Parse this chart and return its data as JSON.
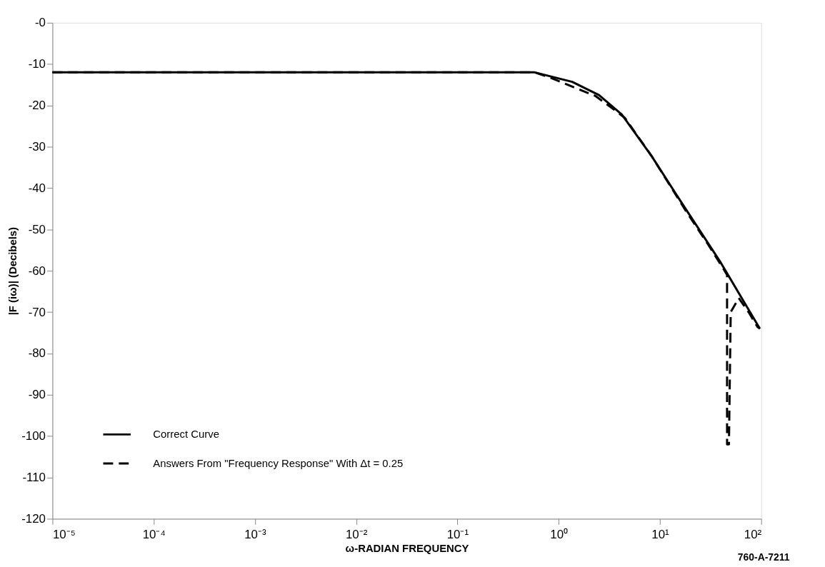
{
  "chart_data": {
    "type": "line",
    "xlabel": "ω-RADIAN FREQUENCY",
    "ylabel": "|F (iω)| (Decibels)",
    "log": "x",
    "xlim": [
      1e-05,
      100
    ],
    "ylim": [
      -120,
      0
    ],
    "xticks": [
      {
        "value": 1e-05,
        "label": "10⁻⁵"
      },
      {
        "value": 0.0001,
        "label": "10⁻⁴"
      },
      {
        "value": 0.001,
        "label": "10⁻³"
      },
      {
        "value": 0.01,
        "label": "10⁻²"
      },
      {
        "value": 0.1,
        "label": "10⁻¹"
      },
      {
        "value": 1,
        "label": "10⁰"
      },
      {
        "value": 10,
        "label": "10¹"
      },
      {
        "value": 100,
        "label": "10²"
      }
    ],
    "yticks": [
      {
        "value": 0,
        "label": "-0"
      },
      -10,
      -20,
      -30,
      -40,
      -50,
      -60,
      -70,
      -80,
      -90,
      -100,
      -110,
      -120
    ],
    "grid": false,
    "legend": "bottom left",
    "marker": "none",
    "series": [
      {
        "name": "Correct Curve",
        "color": "#000000",
        "line_style": "solid",
        "x": [
          1e-05,
          0.58,
          1.36,
          2.5,
          4.2,
          8.3,
          14.8,
          40,
          66,
          97
        ],
        "values": [
          -12,
          -12,
          -14.3,
          -17.5,
          -22.2,
          -32.3,
          -41.9,
          -58.1,
          -67.1,
          -74
        ]
      },
      {
        "name": "Answers From \"Frequency Response\" With  Δt = 0.25",
        "color": "#000000",
        "line_style": "dashed",
        "x": [
          1e-05,
          0.58,
          0.81,
          2.3,
          3.3,
          4.5,
          8.3,
          18,
          30,
          43,
          46,
          46,
          48,
          50,
          60,
          75,
          92,
          97
        ],
        "values": [
          -12,
          -12,
          -13.2,
          -17.7,
          -20.5,
          -23,
          -32.3,
          -45.5,
          -53.7,
          -59.8,
          -61,
          -102,
          -102,
          -70,
          -66.6,
          -70,
          -73.6,
          -74
        ]
      }
    ],
    "annotations": [
      "760-A-7211"
    ]
  }
}
